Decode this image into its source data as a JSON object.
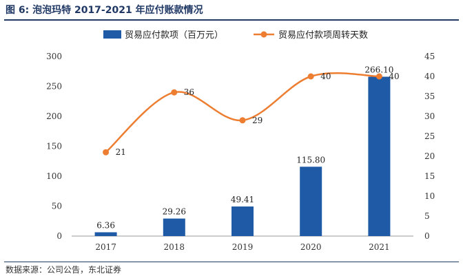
{
  "figure": {
    "title": "图 6: 泡泡玛特 2017-2021 年应付账款情况",
    "source": "数据来源：公司公告，东北证券"
  },
  "colors": {
    "bar": "#1f5aa6",
    "line": "#ed7d31",
    "axis": "#999999",
    "title": "#1f3864"
  },
  "chart_data": {
    "type": "bar",
    "categories": [
      "2017",
      "2018",
      "2019",
      "2020",
      "2021"
    ],
    "series": [
      {
        "name": "贸易应付款项（百万元）",
        "type": "bar",
        "axis": "left",
        "values": [
          6.36,
          29.26,
          49.41,
          115.8,
          266.1
        ],
        "labels": [
          "6.36",
          "29.26",
          "49.41",
          "115.80",
          "266.10"
        ]
      },
      {
        "name": "贸易应付款项周转天数",
        "type": "line",
        "axis": "right",
        "values": [
          21,
          36,
          29,
          40,
          40
        ],
        "labels": [
          "21",
          "36",
          "29",
          "40",
          "40"
        ]
      }
    ],
    "y_left": {
      "lim": [
        0,
        300
      ],
      "ticks": [
        "0",
        "50",
        "100",
        "150",
        "200",
        "250",
        "300"
      ]
    },
    "y_right": {
      "lim": [
        0,
        45
      ],
      "ticks": [
        "0",
        "5",
        "10",
        "15",
        "20",
        "25",
        "30",
        "35",
        "40",
        "45"
      ]
    },
    "legend_position": "top",
    "grid": false
  }
}
